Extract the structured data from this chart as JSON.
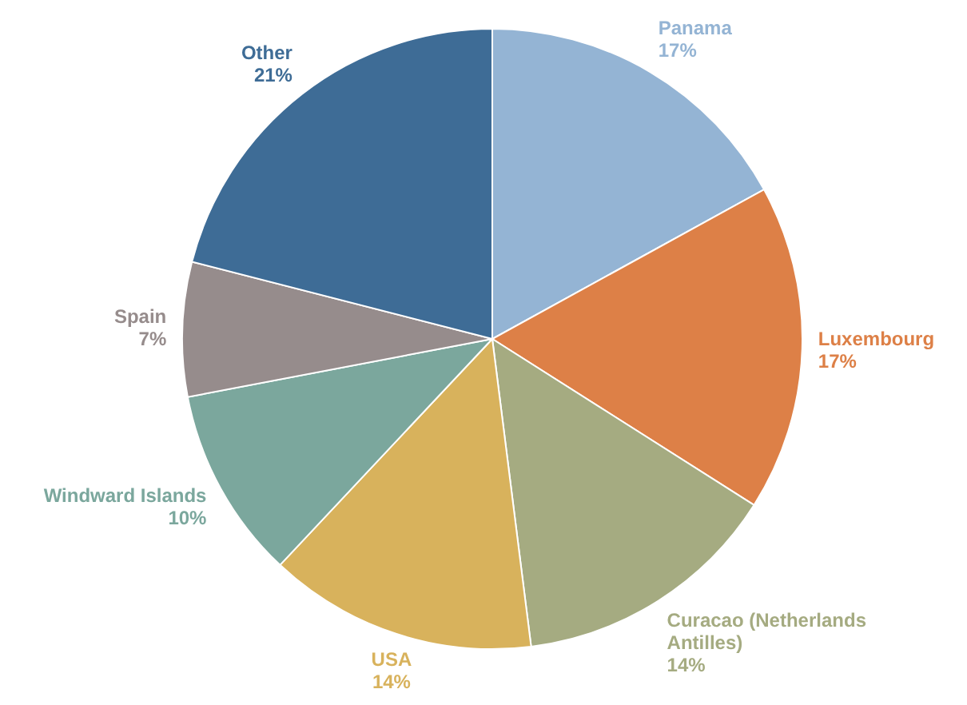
{
  "chart_data": {
    "type": "pie",
    "categories": [
      "Panama",
      "Luxembourg",
      "Curacao (Netherlands Antilles)",
      "USA",
      "Windward Islands",
      "Spain",
      "Other"
    ],
    "values": [
      17,
      17,
      14,
      14,
      10,
      7,
      21
    ],
    "colors": [
      "#94b4d4",
      "#dd8047",
      "#a5ab81",
      "#d8b25c",
      "#7ba79d",
      "#968c8c",
      "#3e6c96"
    ],
    "value_labels": [
      "17%",
      "17%",
      "14%",
      "14%",
      "10%",
      "7%",
      "21%"
    ]
  }
}
